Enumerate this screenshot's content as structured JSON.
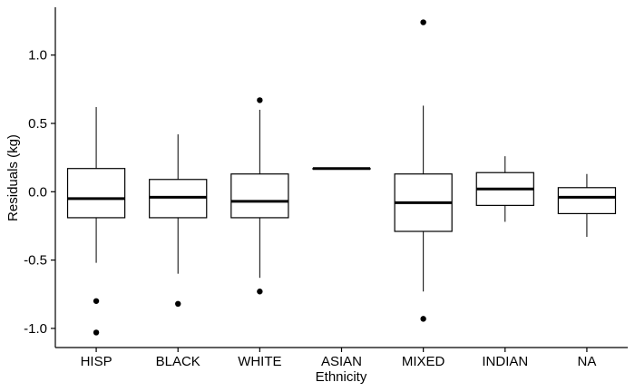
{
  "chart_data": {
    "type": "box",
    "xlabel": "Ethnicity",
    "ylabel": "Residuals (kg)",
    "ylim": [
      -1.14,
      1.35
    ],
    "yticks": [
      1.0,
      0.5,
      0.0,
      -0.5,
      -1.0
    ],
    "ytick_labels": [
      "1.0",
      "0.5",
      "0.0",
      "-0.5",
      "-1.0"
    ],
    "grid": false,
    "categories": [
      "HISP",
      "BLACK",
      "WHITE",
      "ASIAN",
      "MIXED",
      "INDIAN",
      "NA"
    ],
    "boxes": [
      {
        "category": "HISP",
        "whisker_low": -0.52,
        "q1": -0.19,
        "median": -0.05,
        "q3": 0.17,
        "whisker_high": 0.62,
        "outliers": [
          -0.8,
          -1.03
        ]
      },
      {
        "category": "BLACK",
        "whisker_low": -0.6,
        "q1": -0.19,
        "median": -0.04,
        "q3": 0.09,
        "whisker_high": 0.42,
        "outliers": [
          -0.82
        ]
      },
      {
        "category": "WHITE",
        "whisker_low": -0.63,
        "q1": -0.19,
        "median": -0.07,
        "q3": 0.13,
        "whisker_high": 0.6,
        "outliers": [
          0.67,
          -0.73
        ]
      },
      {
        "category": "ASIAN",
        "whisker_low": 0.17,
        "q1": 0.17,
        "median": 0.17,
        "q3": 0.17,
        "whisker_high": 0.17,
        "outliers": []
      },
      {
        "category": "MIXED",
        "whisker_low": -0.73,
        "q1": -0.29,
        "median": -0.08,
        "q3": 0.13,
        "whisker_high": 0.63,
        "outliers": [
          1.24,
          -0.93
        ]
      },
      {
        "category": "INDIAN",
        "whisker_low": -0.22,
        "q1": -0.1,
        "median": 0.02,
        "q3": 0.14,
        "whisker_high": 0.26,
        "outliers": []
      },
      {
        "category": "NA",
        "whisker_low": -0.33,
        "q1": -0.16,
        "median": -0.04,
        "q3": 0.03,
        "whisker_high": 0.13,
        "outliers": []
      }
    ]
  }
}
